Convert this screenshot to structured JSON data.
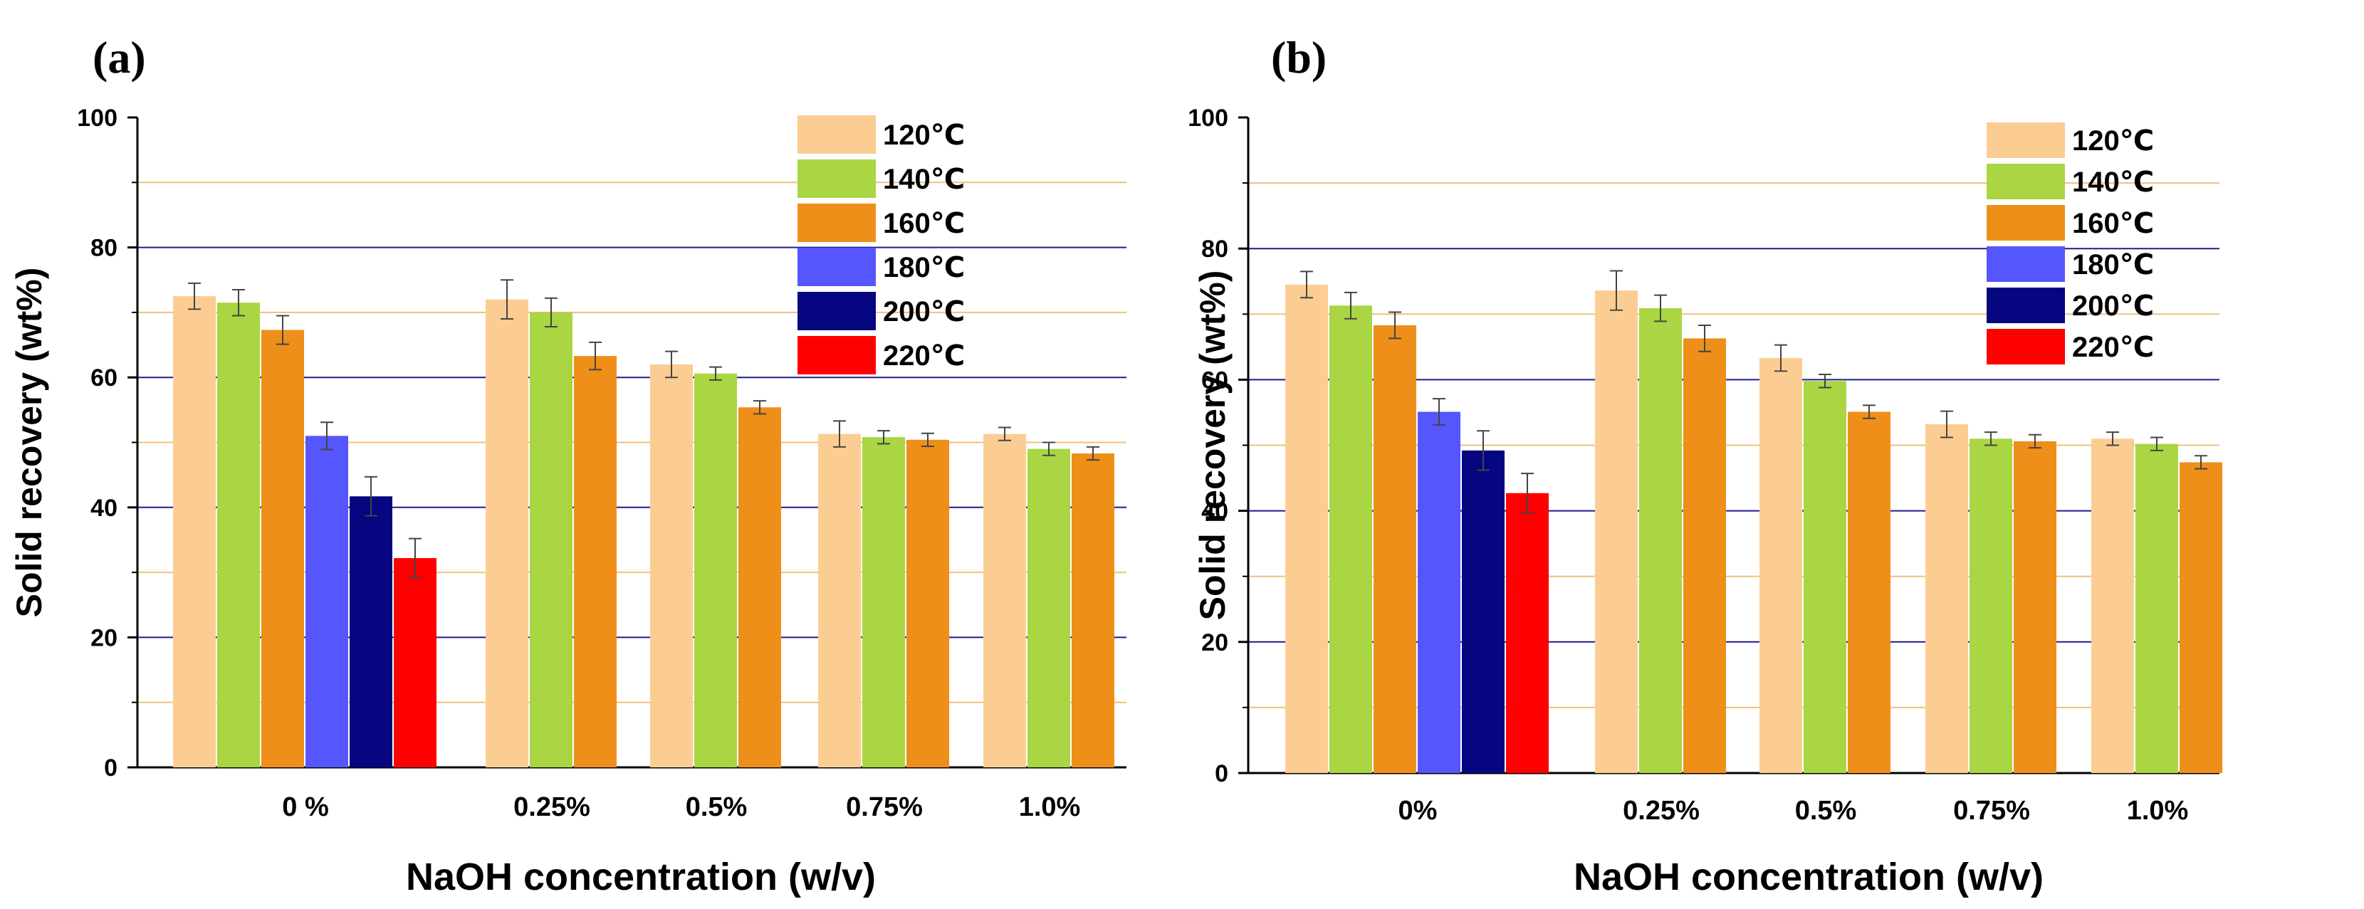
{
  "chart_data": [
    {
      "panel_label": "(a)",
      "type": "bar",
      "xlabel": "NaOH concentration  (w/v)",
      "ylabel": "Solid recovery (wt%)",
      "ylim": [
        0,
        100
      ],
      "yticks": [
        "0",
        "20",
        "40",
        "60",
        "80",
        "100"
      ],
      "grid": true,
      "legend_position": "top-right",
      "groups": [
        {
          "label": "0 %",
          "values": [
            72.5,
            71.5,
            67.3,
            51.0,
            41.7,
            32.2
          ],
          "errors": [
            2.0,
            2.0,
            2.2,
            2.1,
            3.0,
            3.0
          ]
        },
        {
          "label": "0.25%",
          "values": [
            72.0,
            70.0,
            63.3
          ],
          "errors": [
            3.0,
            2.2,
            2.1
          ]
        },
        {
          "label": "0.5%",
          "values": [
            62.0,
            60.6,
            55.4
          ],
          "errors": [
            2.0,
            1.0,
            1.0
          ]
        },
        {
          "label": "0.75%",
          "values": [
            51.3,
            50.8,
            50.4
          ],
          "errors": [
            2.0,
            1.0,
            1.0
          ]
        },
        {
          "label": "1.0%",
          "values": [
            51.3,
            49.0,
            48.3
          ],
          "errors": [
            1.0,
            1.0,
            1.0
          ]
        }
      ]
    },
    {
      "panel_label": "(b)",
      "type": "bar",
      "xlabel": "NaOH concentration  (w/v)",
      "ylabel": "Solid recovery (wt%)",
      "ylim": [
        0,
        100
      ],
      "yticks": [
        "0",
        "20",
        "40",
        "60",
        "80",
        "100"
      ],
      "grid": true,
      "legend_position": "top-right",
      "groups": [
        {
          "label": "0%",
          "values": [
            74.5,
            71.3,
            68.3,
            55.1,
            49.2,
            42.7
          ],
          "errors": [
            2.0,
            2.0,
            2.0,
            2.0,
            3.0,
            3.0
          ]
        },
        {
          "label": "0.25%",
          "values": [
            73.6,
            70.9,
            66.3
          ],
          "errors": [
            3.0,
            2.0,
            2.0
          ]
        },
        {
          "label": "0.5%",
          "values": [
            63.3,
            59.8,
            55.1
          ],
          "errors": [
            2.0,
            1.0,
            1.0
          ]
        },
        {
          "label": "0.75%",
          "values": [
            53.2,
            51.0,
            50.6
          ],
          "errors": [
            2.0,
            1.0,
            1.0
          ]
        },
        {
          "label": "1.0%",
          "values": [
            51.0,
            50.2,
            47.4
          ],
          "errors": [
            1.0,
            1.0,
            1.0
          ]
        }
      ]
    }
  ],
  "series": [
    {
      "name": "120℃",
      "color": "#FCCD93"
    },
    {
      "name": "140℃",
      "color": "#A9D642"
    },
    {
      "name": "160℃",
      "color": "#EE8F1A"
    },
    {
      "name": "180℃",
      "color": "#5656FE"
    },
    {
      "name": "200℃",
      "color": "#060680"
    },
    {
      "name": "220℃",
      "color": "#FE0000"
    }
  ],
  "colors": {
    "grid_major": "#1E1E8C",
    "grid_minor": "#F0C080",
    "axis": "#000000",
    "error_bar": "#444444"
  }
}
